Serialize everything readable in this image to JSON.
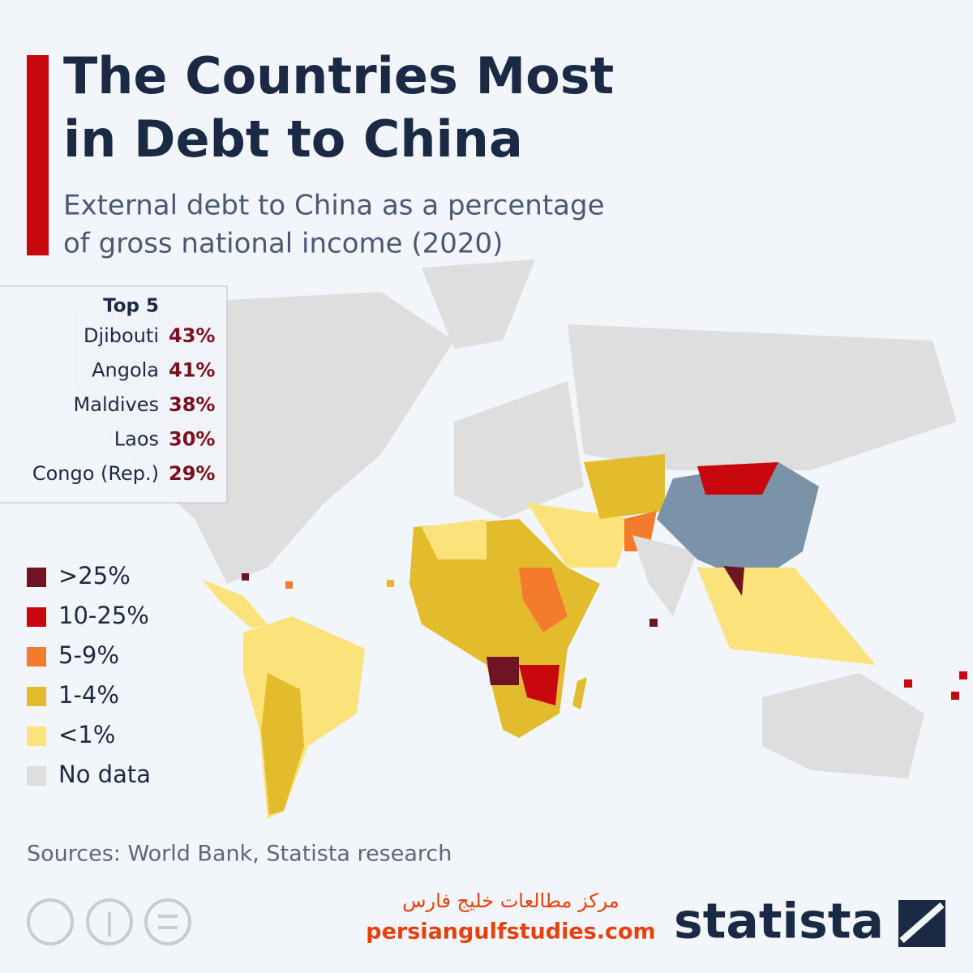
{
  "header": {
    "title_line1": "The Countries Most",
    "title_line2": "in Debt to China",
    "subtitle_line1": "External debt to China as a percentage",
    "subtitle_line2": "of gross national income (2020)"
  },
  "top5": {
    "heading": "Top 5",
    "rows": [
      {
        "country": "Djibouti",
        "value": "43%"
      },
      {
        "country": "Angola",
        "value": "41%"
      },
      {
        "country": "Maldives",
        "value": "38%"
      },
      {
        "country": "Laos",
        "value": "30%"
      },
      {
        "country": "Congo (Rep.)",
        "value": "29%"
      }
    ]
  },
  "legend": [
    {
      "label": ">25%",
      "color": "#6e1423"
    },
    {
      "label": "10-25%",
      "color": "#c8070f"
    },
    {
      "label": "5-9%",
      "color": "#f47b2c"
    },
    {
      "label": "1-4%",
      "color": "#e3bc2e"
    },
    {
      "label": "<1%",
      "color": "#fbe27a"
    },
    {
      "label": "No data",
      "color": "#dedede"
    }
  ],
  "footer": {
    "sources": "Sources: World Bank, Statista research",
    "watermark_arabic": "مرکز مطالعات خلیج فارس",
    "watermark_url": "persiangulfstudies.com",
    "brand": "statista"
  }
}
